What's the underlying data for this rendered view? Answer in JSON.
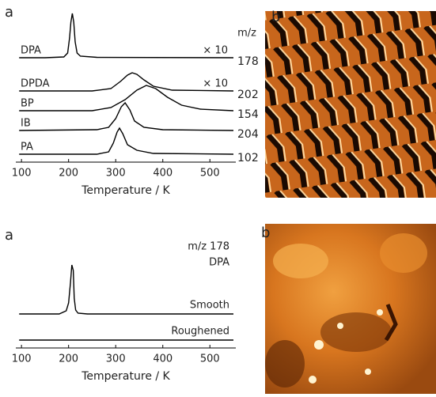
{
  "chart_data": [
    {
      "type": "line",
      "panel_label": "a",
      "mass_header": "m/z",
      "xlabel": "Temperature / K",
      "xlim": [
        88,
        555
      ],
      "xticks": [
        100,
        200,
        300,
        400,
        500
      ],
      "series": [
        {
          "name": "DPA",
          "color": "#000000",
          "mass": "178",
          "scale_label": "× 10",
          "x": [
            95,
            150,
            190,
            198,
            202,
            205,
            208,
            211,
            214,
            218,
            225,
            260,
            550
          ],
          "values": [
            0,
            0,
            1,
            6,
            25,
            45,
            56,
            45,
            20,
            6,
            2,
            0.5,
            0
          ]
        },
        {
          "name": "DPDA",
          "color": "#000000",
          "mass": "202",
          "scale_label": "× 10",
          "x": [
            95,
            250,
            290,
            310,
            325,
            335,
            345,
            360,
            380,
            420,
            550
          ],
          "values": [
            0,
            0,
            3,
            12,
            20,
            23,
            21,
            14,
            6,
            1,
            0
          ]
        },
        {
          "name": "BP",
          "color": "#000000",
          "mass": "154",
          "x": [
            95,
            250,
            290,
            320,
            345,
            365,
            385,
            410,
            440,
            480,
            550
          ],
          "values": [
            0,
            0,
            4,
            14,
            26,
            32,
            28,
            17,
            7,
            2,
            0
          ]
        },
        {
          "name": "IB",
          "color": "#000000",
          "mass": "204",
          "x": [
            95,
            260,
            285,
            300,
            312,
            320,
            330,
            340,
            360,
            400,
            550
          ],
          "values": [
            0,
            1,
            4,
            15,
            30,
            35,
            26,
            12,
            4,
            1,
            0
          ]
        },
        {
          "name": "PA",
          "color": "#000000",
          "mass": "102",
          "x": [
            95,
            260,
            285,
            295,
            303,
            308,
            315,
            325,
            345,
            380,
            550
          ],
          "values": [
            0,
            0,
            3,
            14,
            28,
            33,
            26,
            12,
            5,
            1,
            0
          ]
        }
      ]
    },
    {
      "type": "line",
      "panel_label": "a",
      "title": "m/z 178",
      "subtitle": "DPA",
      "xlabel": "Temperature / K",
      "xlim": [
        88,
        555
      ],
      "xticks": [
        100,
        200,
        300,
        400,
        500
      ],
      "series": [
        {
          "name": "Smooth",
          "color": "#000000",
          "x": [
            95,
            180,
            195,
            200,
            204,
            207,
            210,
            212,
            215,
            220,
            240,
            550
          ],
          "values": [
            0,
            0,
            4,
            14,
            40,
            62,
            55,
            20,
            5,
            1,
            0,
            0
          ]
        },
        {
          "name": "Roughened",
          "color": "#000000",
          "x": [
            95,
            550
          ],
          "values": [
            0,
            0
          ]
        }
      ]
    }
  ],
  "images": [
    {
      "label": "b"
    },
    {
      "label": "b"
    }
  ]
}
